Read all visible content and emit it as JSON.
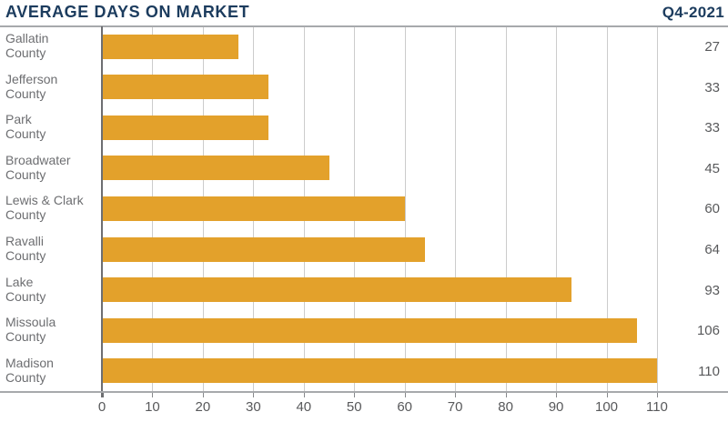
{
  "header": {
    "title": "AVERAGE DAYS ON MARKET",
    "period": "Q4-2021"
  },
  "chart_data": {
    "type": "bar",
    "orientation": "horizontal",
    "title": "AVERAGE DAYS ON MARKET",
    "subtitle": "Q4-2021",
    "categories": [
      "Gallatin\nCounty",
      "Jefferson\nCounty",
      "Park\nCounty",
      "Broadwater\nCounty",
      "Lewis & Clark\nCounty",
      "Ravalli\nCounty",
      "Lake\nCounty",
      "Missoula\nCounty",
      "Madison\nCounty"
    ],
    "values": [
      27,
      33,
      33,
      45,
      60,
      64,
      93,
      106,
      110
    ],
    "value_labels": [
      "27",
      "33",
      "33",
      "45",
      "60",
      "64",
      "93",
      "106",
      "110"
    ],
    "xlabel": "",
    "ylabel": "",
    "xticks": [
      0,
      10,
      20,
      30,
      40,
      50,
      60,
      70,
      80,
      90,
      100,
      110
    ],
    "xlim": [
      0,
      124
    ],
    "grid": true,
    "legend": false,
    "bar_color": "#e3a12b",
    "title_color": "#1c3c5e",
    "label_color": "#6d6e71",
    "value_color": "#58595b",
    "gridline_color": "#cccccc",
    "axis_color": "#a7a9ac"
  }
}
